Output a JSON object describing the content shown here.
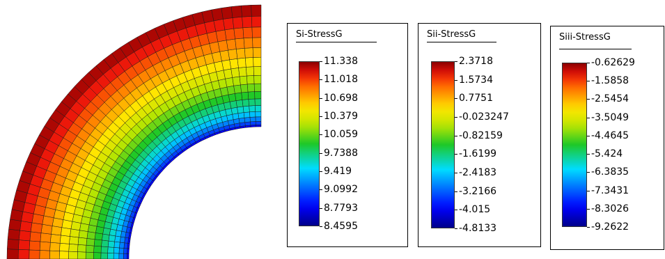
{
  "mesh": {
    "color_min": "#00008b",
    "color_max": "#8b0000"
  },
  "legends": [
    {
      "title": "Si-StressG",
      "labels": [
        "11.338",
        "11.018",
        "10.698",
        "10.379",
        "10.059",
        "9.7388",
        "9.419",
        "9.0992",
        "8.7793",
        "8.4595"
      ]
    },
    {
      "title": "Sii-StressG",
      "labels": [
        "2.3718",
        "1.5734",
        "0.7751",
        "-0.023247",
        "-0.82159",
        "-1.6199",
        "-2.4183",
        "-3.2166",
        "-4.015",
        "-4.8133"
      ]
    },
    {
      "title": "Siii-StressG",
      "labels": [
        "-0.62629",
        "-1.5858",
        "-2.5454",
        "-3.5049",
        "-4.4645",
        "-5.424",
        "-6.3835",
        "-7.3431",
        "-8.3026",
        "-9.2622"
      ]
    }
  ]
}
